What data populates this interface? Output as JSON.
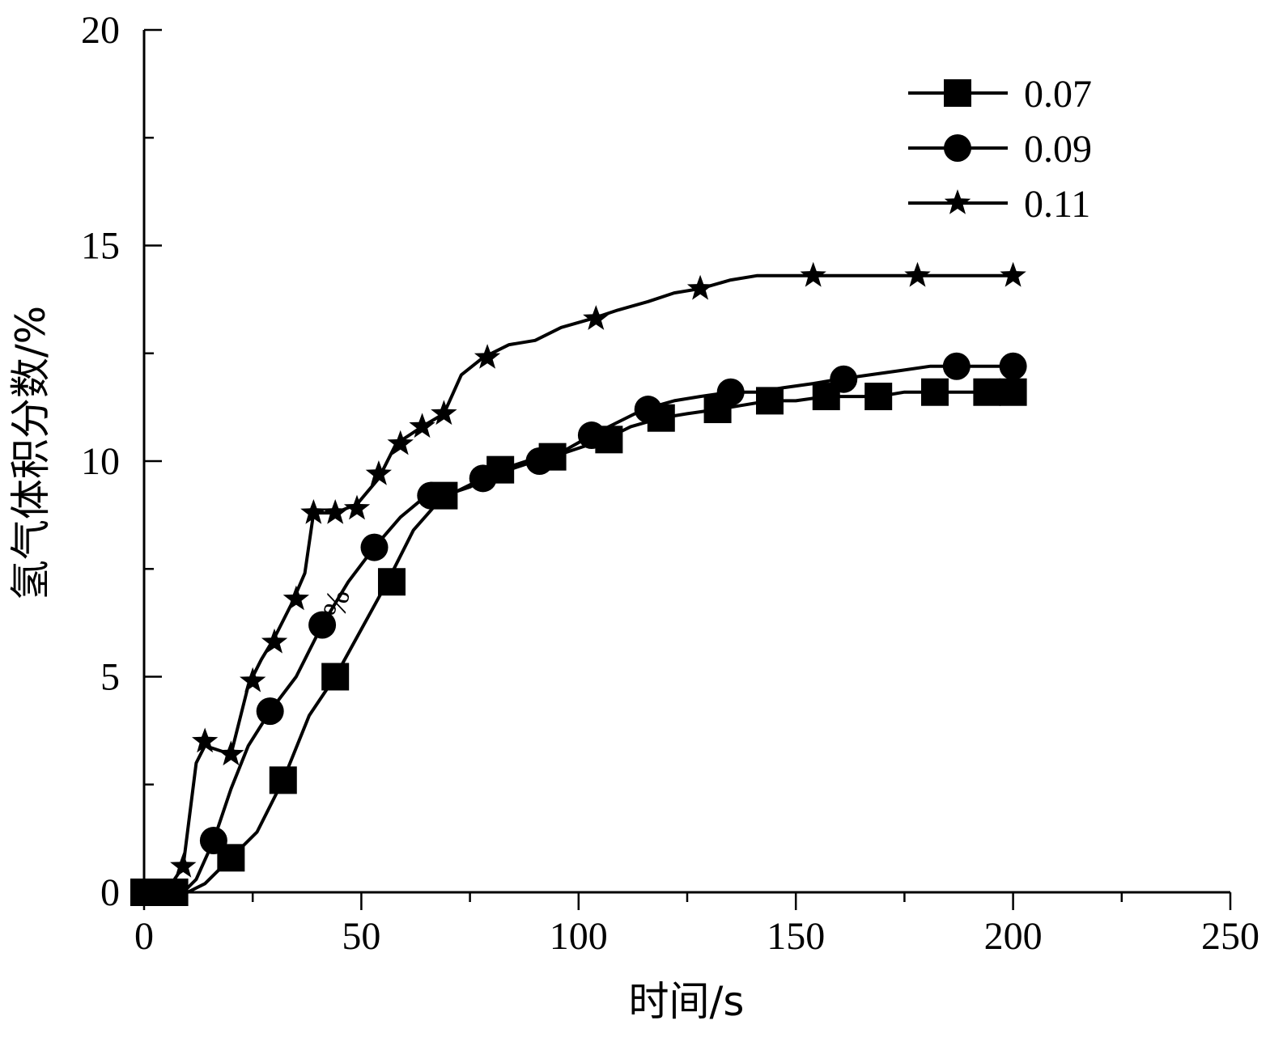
{
  "chart_data": {
    "type": "line",
    "xlabel": "时间/s",
    "ylabel": "氢气体积分数/%",
    "xlim": [
      0,
      250
    ],
    "ylim": [
      0,
      20
    ],
    "xticks": [
      0,
      50,
      100,
      150,
      200,
      250
    ],
    "yticks": [
      0,
      5,
      10,
      15,
      20
    ],
    "x_tick_labels": [
      "0",
      "50",
      "100",
      "150",
      "200",
      "250"
    ],
    "y_tick_labels": [
      "0",
      "5",
      "10",
      "15",
      "20"
    ],
    "grid": false,
    "legend_position": "top-right",
    "stray_annotation": "%",
    "series": [
      {
        "name": "0.07",
        "marker": "square",
        "color": "#000000",
        "x": [
          0,
          4,
          7,
          10,
          14,
          20,
          26,
          32,
          38,
          44,
          50,
          56,
          62,
          69,
          75,
          82,
          88,
          94,
          100,
          106,
          112,
          119,
          125,
          132,
          138,
          144,
          150,
          157,
          163,
          169,
          175,
          182,
          188,
          194,
          200
        ],
        "y": [
          0,
          0,
          0,
          0,
          0.2,
          0.8,
          1.4,
          2.6,
          4.1,
          5.0,
          6.1,
          7.2,
          8.4,
          9.2,
          9.4,
          9.8,
          10.0,
          10.1,
          10.3,
          10.5,
          10.8,
          11.0,
          11.1,
          11.2,
          11.3,
          11.4,
          11.4,
          11.5,
          11.5,
          11.5,
          11.6,
          11.6,
          11.6,
          11.6,
          11.6
        ],
        "marker_x": [
          0,
          4,
          7,
          20,
          32,
          44,
          57,
          69,
          82,
          94,
          107,
          119,
          132,
          144,
          157,
          169,
          182,
          194,
          200
        ],
        "marker_y": [
          0,
          0,
          0,
          0.8,
          2.6,
          5.0,
          7.2,
          9.2,
          9.8,
          10.1,
          10.5,
          11.0,
          11.2,
          11.4,
          11.5,
          11.5,
          11.6,
          11.6,
          11.6
        ]
      },
      {
        "name": "0.09",
        "marker": "circle",
        "color": "#000000",
        "x": [
          0,
          3,
          6,
          9,
          12,
          16,
          20,
          24,
          29,
          35,
          41,
          47,
          53,
          59,
          65,
          72,
          78,
          84,
          90,
          96,
          103,
          109,
          115,
          122,
          128,
          135,
          141,
          147,
          154,
          160,
          167,
          174,
          181,
          188,
          194,
          200
        ],
        "y": [
          0,
          0,
          0,
          0,
          0.3,
          1.2,
          2.4,
          3.4,
          4.2,
          5.0,
          6.2,
          7.2,
          8.0,
          8.7,
          9.2,
          9.3,
          9.6,
          9.8,
          10.0,
          10.2,
          10.6,
          10.9,
          11.2,
          11.4,
          11.5,
          11.6,
          11.6,
          11.7,
          11.8,
          11.9,
          12.0,
          12.1,
          12.2,
          12.2,
          12.2,
          12.2
        ],
        "marker_x": [
          0,
          3,
          16,
          29,
          41,
          53,
          66,
          78,
          91,
          103,
          116,
          135,
          161,
          187,
          200
        ],
        "marker_y": [
          0,
          0,
          1.2,
          4.2,
          6.2,
          8.0,
          9.2,
          9.6,
          10.0,
          10.6,
          11.2,
          11.6,
          11.9,
          12.2,
          12.2
        ]
      },
      {
        "name": "0.11",
        "marker": "star",
        "color": "#000000",
        "x": [
          0,
          5,
          9,
          12,
          14,
          17,
          20,
          24,
          27,
          30,
          34,
          37,
          39,
          42,
          44,
          49,
          54,
          58,
          64,
          69,
          73,
          78,
          84,
          90,
          96,
          103,
          109,
          116,
          122,
          128,
          135,
          141,
          147,
          153,
          159,
          166,
          172,
          178,
          184,
          190,
          196,
          200
        ],
        "y": [
          0,
          0,
          0.6,
          3.0,
          3.4,
          3.3,
          3.2,
          4.8,
          5.4,
          5.9,
          6.7,
          7.4,
          8.8,
          8.8,
          8.8,
          9.0,
          9.6,
          10.4,
          10.8,
          11.1,
          12.0,
          12.4,
          12.7,
          12.8,
          13.1,
          13.3,
          13.5,
          13.7,
          13.9,
          14.0,
          14.2,
          14.3,
          14.3,
          14.3,
          14.3,
          14.3,
          14.3,
          14.3,
          14.3,
          14.3,
          14.3,
          14.3
        ],
        "marker_x": [
          0,
          9,
          14,
          20,
          25,
          30,
          35,
          39,
          44,
          49,
          54,
          59,
          64,
          69,
          79,
          104,
          128,
          154,
          178,
          200
        ],
        "marker_y": [
          0,
          0.6,
          3.5,
          3.2,
          4.9,
          5.8,
          6.8,
          8.8,
          8.8,
          8.9,
          9.7,
          10.4,
          10.8,
          11.1,
          12.4,
          13.3,
          14.0,
          14.3,
          14.3,
          14.3
        ]
      }
    ]
  }
}
